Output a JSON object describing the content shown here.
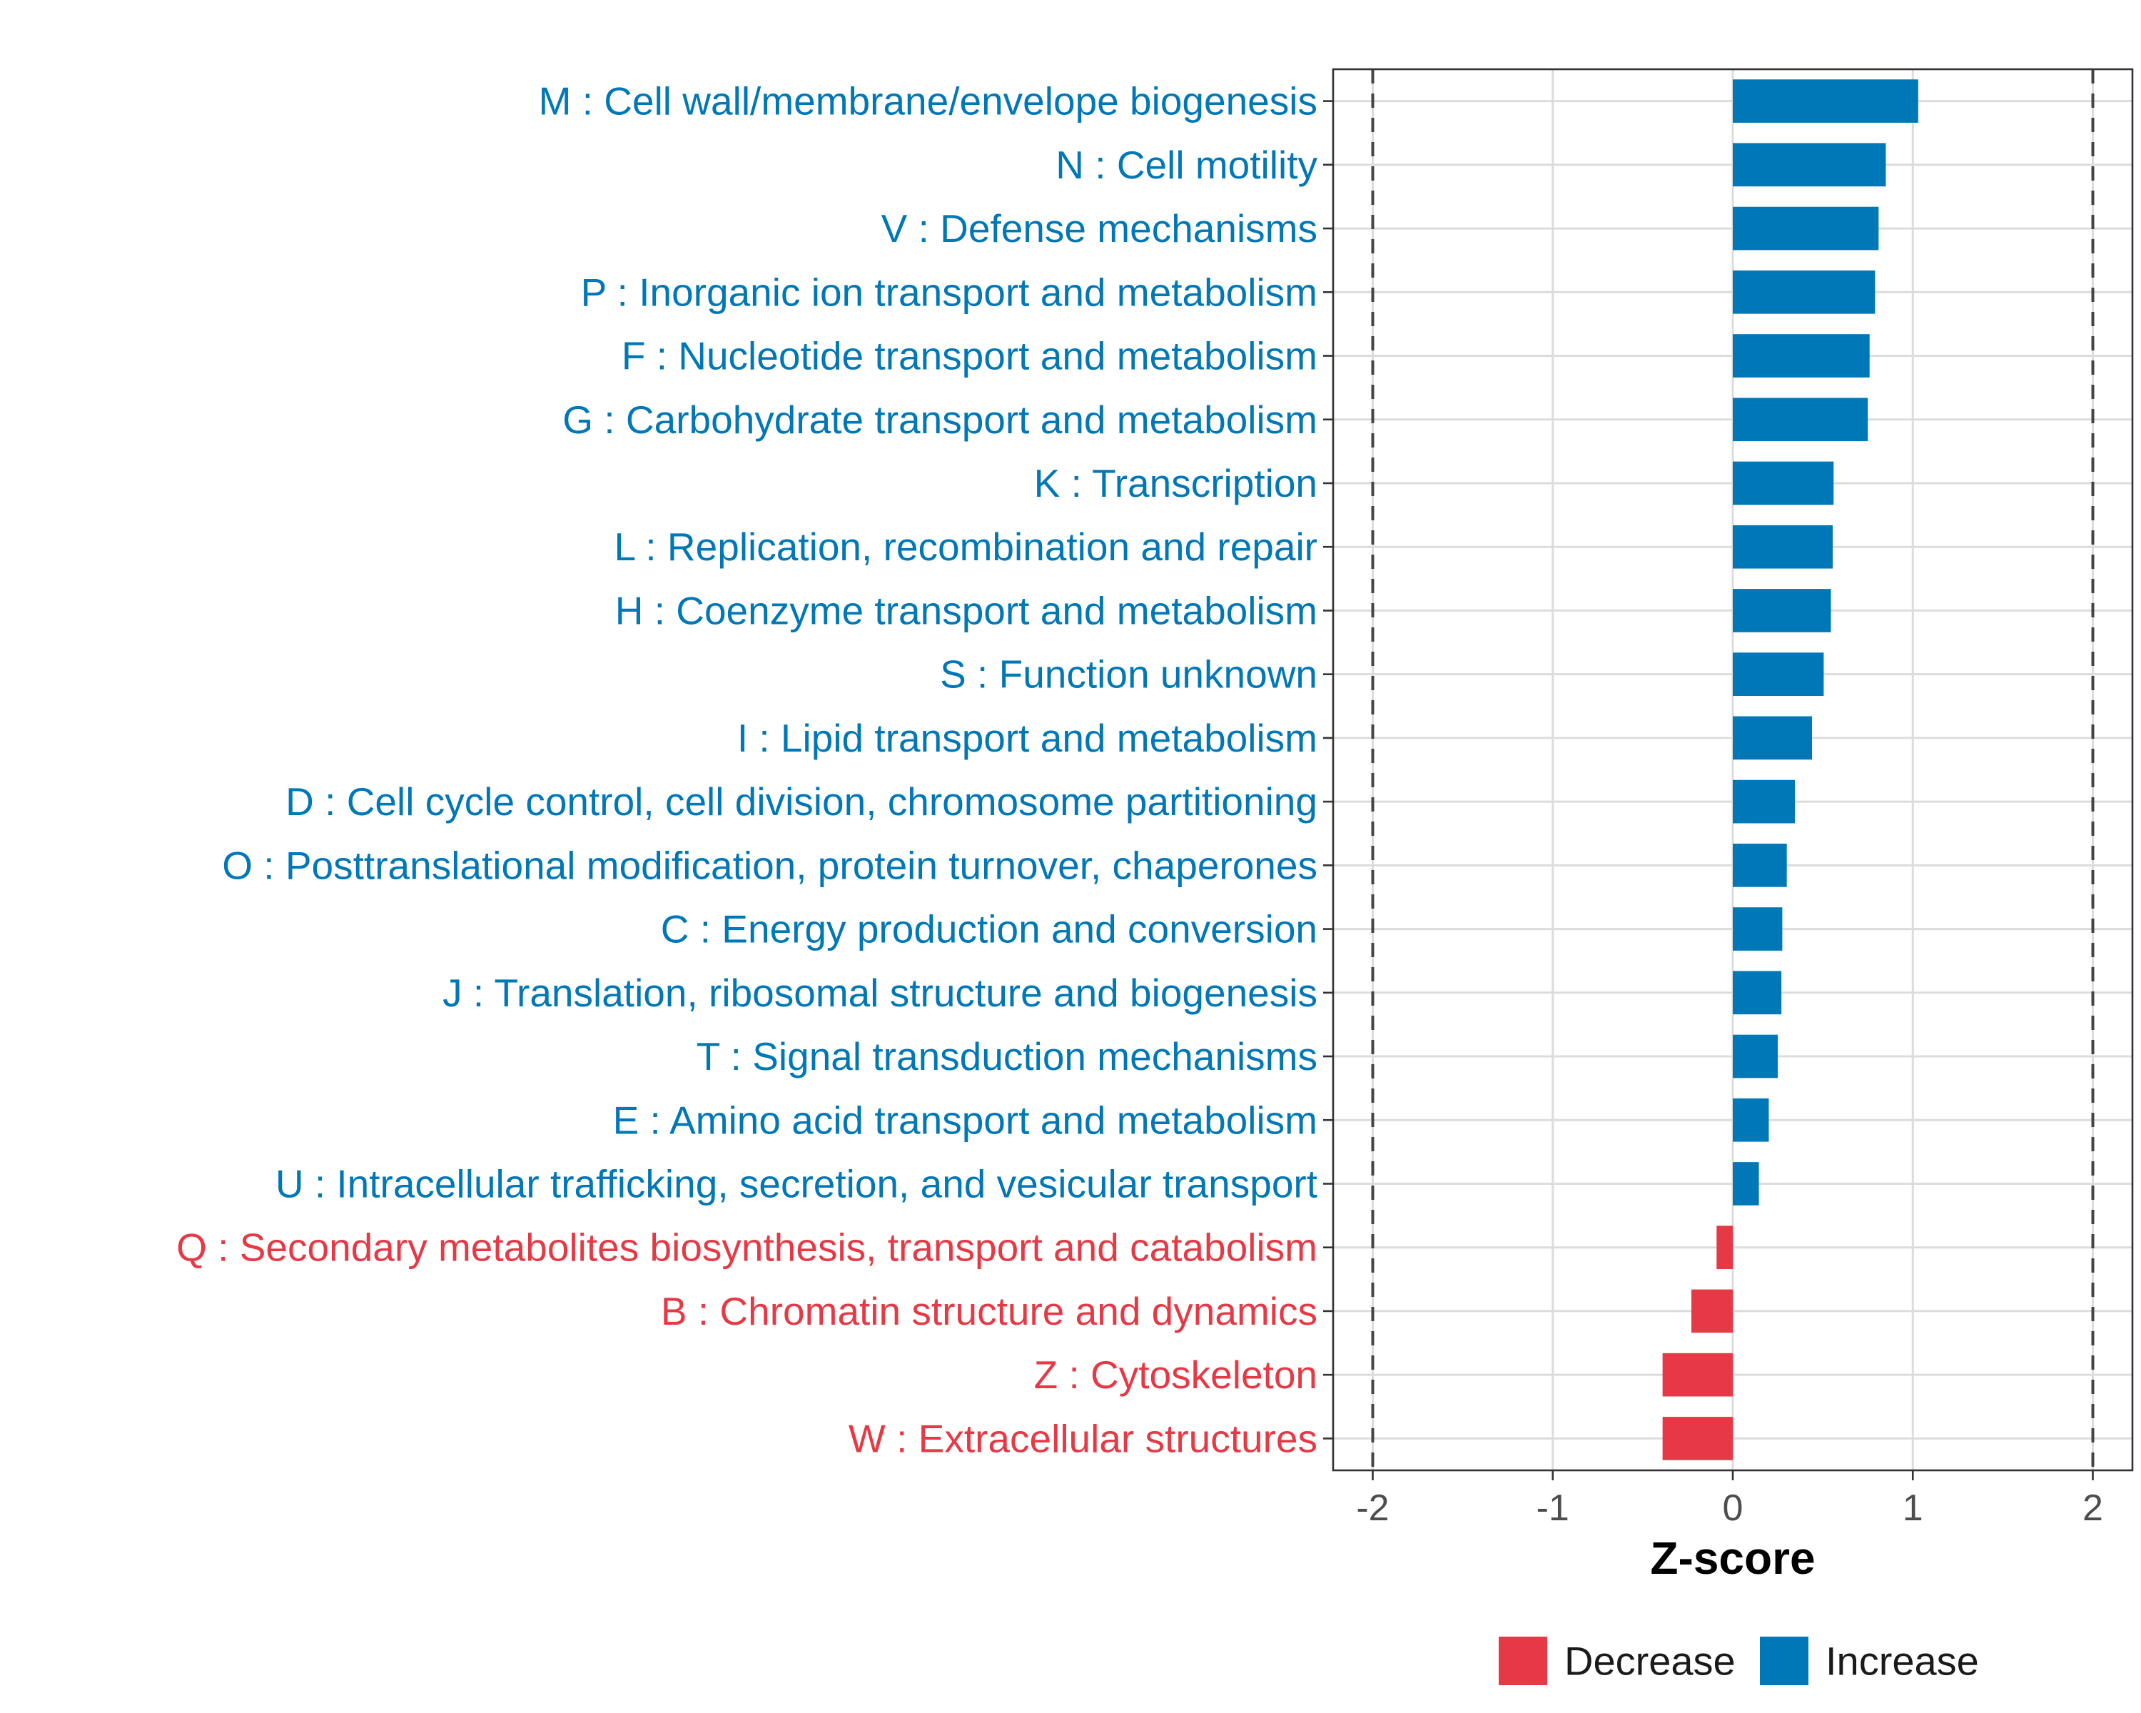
{
  "chart_data": {
    "type": "bar",
    "orientation": "horizontal",
    "xlabel": "Z-score",
    "xlim": [
      -2.22,
      2.22
    ],
    "x_ticks": [
      -2,
      -1,
      0,
      1,
      2
    ],
    "x_tick_labels": [
      "-2",
      "-1",
      "0",
      "1",
      "2"
    ],
    "reference_lines": [
      -2,
      2
    ],
    "grid": true,
    "legend_position": "bottom",
    "colors": {
      "Decrease": "#E63946",
      "Increase": "#0077B6"
    },
    "legend": [
      {
        "name": "Decrease",
        "color": "#E63946"
      },
      {
        "name": "Increase",
        "color": "#0077B6"
      }
    ],
    "categories": [
      "M : Cell wall/membrane/envelope biogenesis",
      "N : Cell motility",
      "V : Defense mechanisms",
      "P : Inorganic ion transport and metabolism",
      "F : Nucleotide transport and metabolism",
      "G : Carbohydrate transport and metabolism",
      "K : Transcription",
      "L : Replication, recombination and repair",
      "H : Coenzyme transport and metabolism",
      "S : Function unknown",
      "I : Lipid transport and metabolism",
      "D : Cell cycle control, cell division, chromosome partitioning",
      "O : Posttranslational modification, protein turnover, chaperones",
      "C : Energy production and conversion",
      "J : Translation, ribosomal structure and biogenesis",
      "T : Signal transduction mechanisms",
      "E : Amino acid transport and metabolism",
      "U : Intracellular trafficking, secretion, and vesicular transport",
      "Q : Secondary metabolites biosynthesis, transport and catabolism",
      "B : Chromatin structure and dynamics",
      "Z : Cytoskeleton",
      "W : Extracellular structures"
    ],
    "values": [
      1.03,
      0.85,
      0.81,
      0.79,
      0.76,
      0.75,
      0.56,
      0.555,
      0.545,
      0.505,
      0.44,
      0.345,
      0.3,
      0.275,
      0.27,
      0.25,
      0.2,
      0.145,
      -0.09,
      -0.23,
      -0.39,
      -0.39
    ],
    "groups": [
      "Increase",
      "Increase",
      "Increase",
      "Increase",
      "Increase",
      "Increase",
      "Increase",
      "Increase",
      "Increase",
      "Increase",
      "Increase",
      "Increase",
      "Increase",
      "Increase",
      "Increase",
      "Increase",
      "Increase",
      "Increase",
      "Decrease",
      "Decrease",
      "Decrease",
      "Decrease"
    ]
  }
}
